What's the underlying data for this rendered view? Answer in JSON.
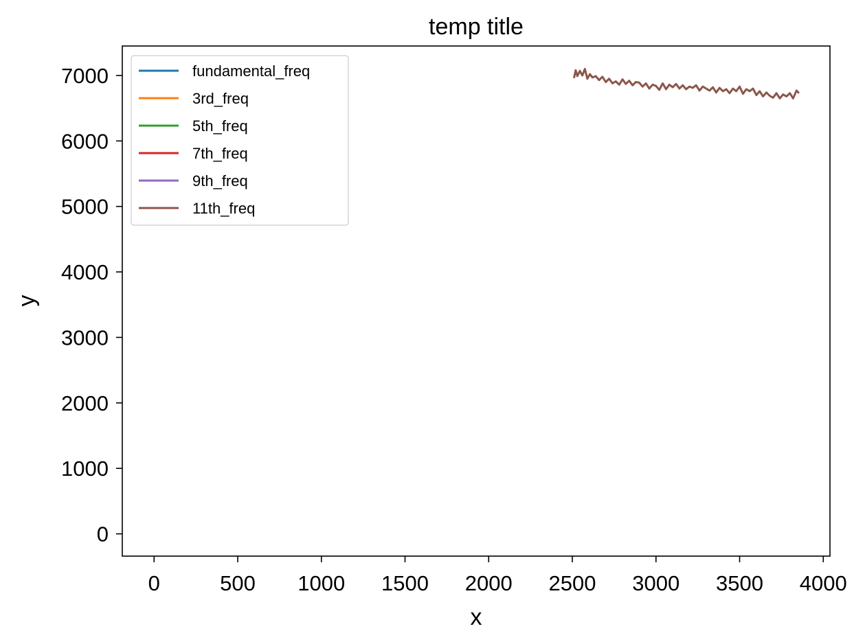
{
  "chart_data": {
    "type": "line",
    "title": "temp title",
    "xlabel": "x",
    "ylabel": "y",
    "xlim": [
      -190,
      4040
    ],
    "ylim": [
      -340,
      7450
    ],
    "xticks": [
      0,
      500,
      1000,
      1500,
      2000,
      2500,
      3000,
      3500,
      4000
    ],
    "yticks": [
      0,
      1000,
      2000,
      3000,
      4000,
      5000,
      6000,
      7000
    ],
    "grid": false,
    "legend_position": "top-left",
    "series": [
      {
        "name": "fundamental_freq",
        "color": "#1f77b4",
        "x": [],
        "y": []
      },
      {
        "name": "3rd_freq",
        "color": "#ff7f0e",
        "x": [],
        "y": []
      },
      {
        "name": "5th_freq",
        "color": "#2ca02c",
        "x": [],
        "y": []
      },
      {
        "name": "7th_freq",
        "color": "#d62728",
        "x": [],
        "y": []
      },
      {
        "name": "9th_freq",
        "color": "#9467bd",
        "x": [],
        "y": []
      },
      {
        "name": "11th_freq",
        "color": "#8c564b",
        "x": [
          2510,
          2520,
          2530,
          2545,
          2560,
          2575,
          2590,
          2605,
          2620,
          2640,
          2660,
          2680,
          2700,
          2720,
          2740,
          2760,
          2780,
          2800,
          2820,
          2840,
          2860,
          2880,
          2900,
          2920,
          2940,
          2960,
          2980,
          3000,
          3020,
          3040,
          3060,
          3080,
          3100,
          3120,
          3140,
          3160,
          3180,
          3200,
          3220,
          3240,
          3260,
          3280,
          3300,
          3320,
          3340,
          3360,
          3380,
          3400,
          3420,
          3440,
          3460,
          3480,
          3500,
          3520,
          3540,
          3560,
          3580,
          3600,
          3620,
          3640,
          3660,
          3680,
          3700,
          3720,
          3740,
          3760,
          3780,
          3800,
          3820,
          3840,
          3855
        ],
        "y": [
          6960,
          7080,
          6990,
          7070,
          7000,
          7100,
          6950,
          7020,
          6970,
          6990,
          6930,
          6980,
          6900,
          6950,
          6880,
          6910,
          6860,
          6940,
          6870,
          6920,
          6850,
          6900,
          6890,
          6830,
          6880,
          6800,
          6860,
          6840,
          6780,
          6880,
          6790,
          6860,
          6820,
          6870,
          6800,
          6850,
          6790,
          6830,
          6810,
          6850,
          6770,
          6830,
          6800,
          6770,
          6820,
          6740,
          6810,
          6760,
          6790,
          6730,
          6800,
          6760,
          6830,
          6720,
          6790,
          6760,
          6800,
          6700,
          6760,
          6680,
          6740,
          6690,
          6660,
          6730,
          6650,
          6710,
          6680,
          6730,
          6650,
          6770,
          6730
        ]
      }
    ]
  }
}
